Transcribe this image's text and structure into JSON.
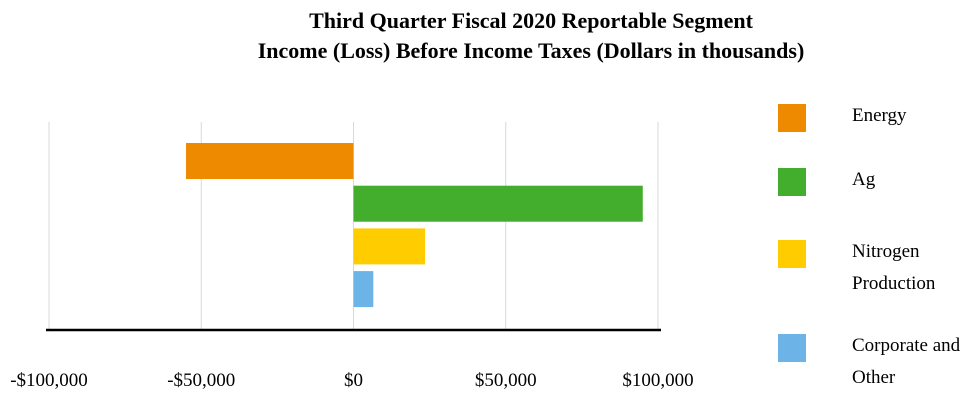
{
  "chart_data": {
    "type": "bar",
    "orientation": "horizontal",
    "title": [
      "Third Quarter Fiscal 2020 Reportable Segment",
      "Income (Loss) Before Income Taxes (Dollars in thousands)"
    ],
    "categories": [
      "Energy",
      "Ag",
      "Nitrogen Production",
      "Corporate and Other"
    ],
    "values": [
      -55000,
      95000,
      23500,
      6500
    ],
    "colors": [
      "#EE8A00",
      "#43AE2D",
      "#FFCC00",
      "#6CB4E8"
    ],
    "xlim": [
      -100000,
      100000
    ],
    "xticks": [
      -100000,
      -50000,
      0,
      50000,
      100000
    ],
    "xtick_labels": [
      "-$100,000",
      "-$50,000",
      "$0",
      "$50,000",
      "$100,000"
    ],
    "grid": true,
    "legend_position": "right",
    "legend": [
      {
        "label": "Energy",
        "color": "#EE8A00"
      },
      {
        "label": "Ag",
        "color": "#43AE2D"
      },
      {
        "label": "Nitrogen\nProduction",
        "color": "#FFCC00"
      },
      {
        "label": "Corporate and\nOther",
        "color": "#6CB4E8"
      }
    ]
  }
}
